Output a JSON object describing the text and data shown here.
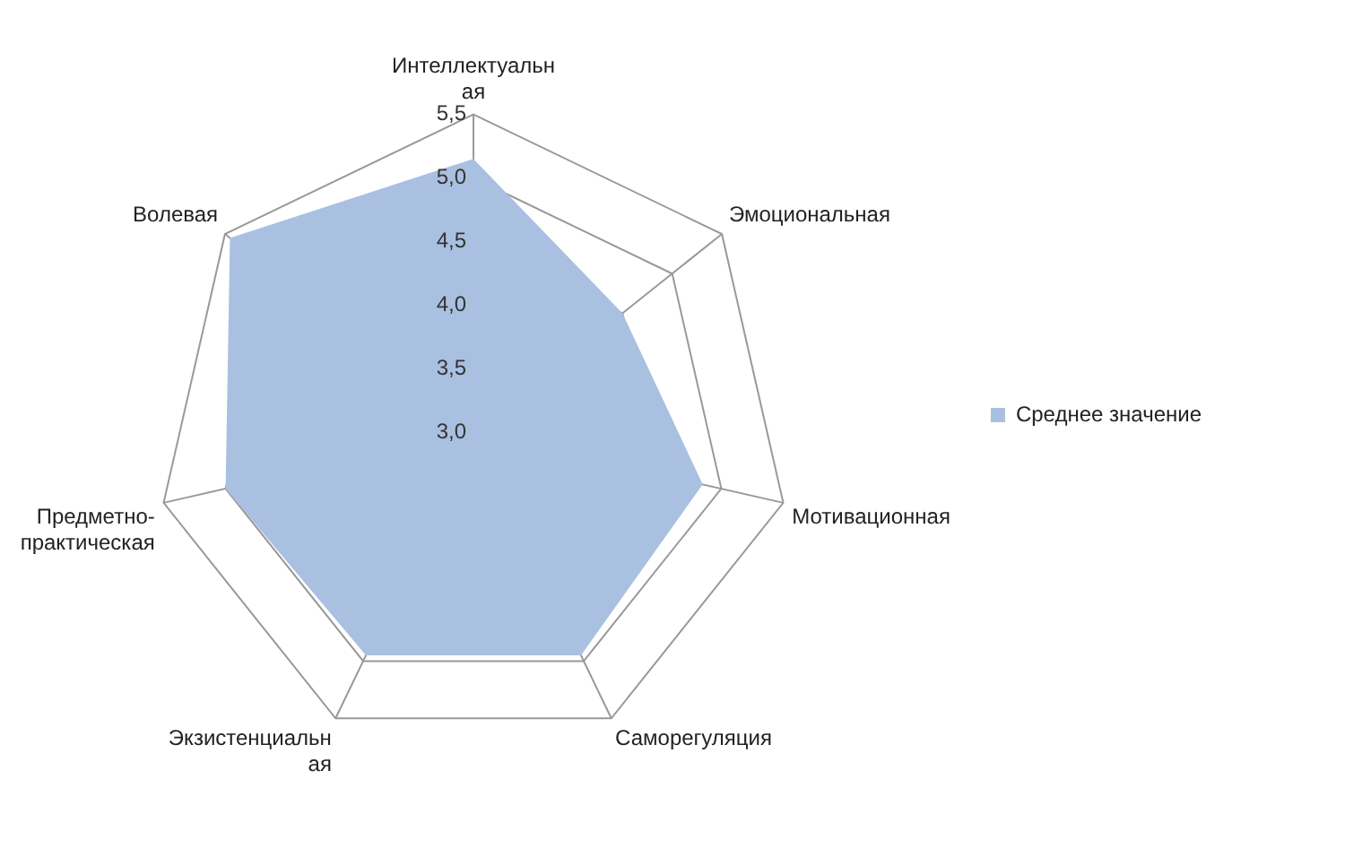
{
  "chart_data": {
    "type": "radar",
    "categories": [
      "Интеллектуальн\nая",
      "Эмоциональная",
      "Мотивационная",
      "Саморегуляция",
      "Экзистенциальн\nая",
      "Предметно-\nпрактическая",
      "Волевая"
    ],
    "series": [
      {
        "name": "Среднее значение",
        "color": "#a9c0e0",
        "values": [
          5.15,
          4.5,
          4.85,
          4.95,
          4.95,
          5.0,
          5.45
        ]
      }
    ],
    "ylim": [
      3.0,
      5.5
    ],
    "yticks": [
      {
        "value": 3.0,
        "label": "3,0"
      },
      {
        "value": 3.5,
        "label": "3,5"
      },
      {
        "value": 4.0,
        "label": "4,0"
      },
      {
        "value": 4.5,
        "label": "4,5"
      },
      {
        "value": 5.0,
        "label": "5,0"
      },
      {
        "value": 5.5,
        "label": "5,5"
      }
    ],
    "grid": true,
    "legend": "right"
  }
}
